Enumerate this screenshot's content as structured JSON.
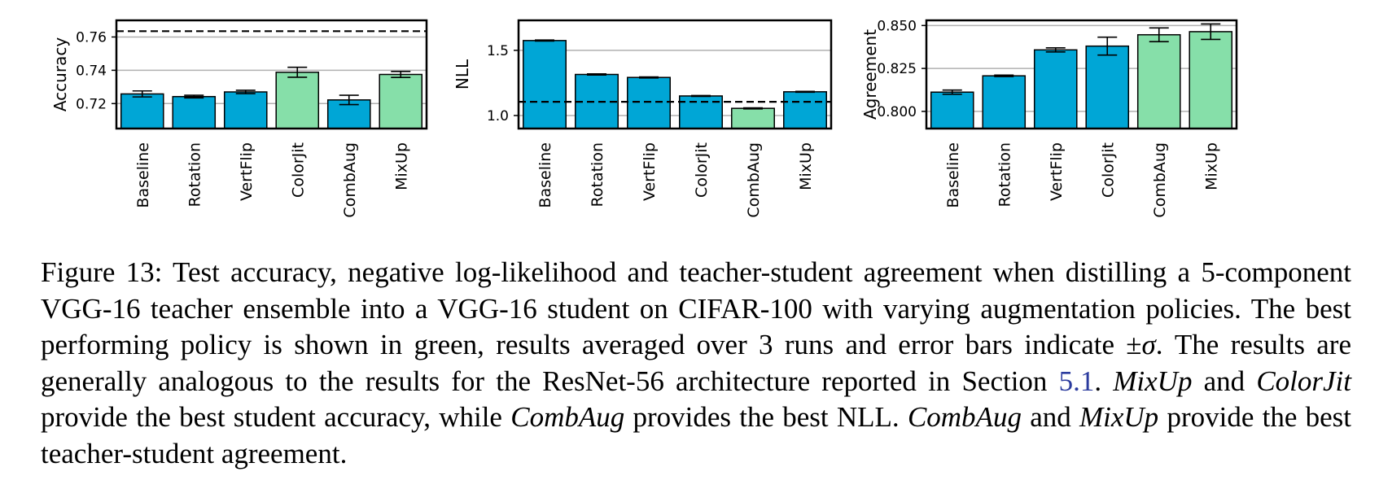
{
  "colors": {
    "bar": "#00a6d6",
    "best": "#86dfa9",
    "grid": "#b0b0b0",
    "axis": "#000000"
  },
  "chart_data": [
    {
      "type": "bar",
      "ylabel": "Accuracy",
      "categories": [
        "Baseline",
        "Rotation",
        "VertFlip",
        "ColorJit",
        "CombAug",
        "MixUp"
      ],
      "values": [
        0.7258,
        0.7242,
        0.727,
        0.7388,
        0.7222,
        0.7375
      ],
      "errors": [
        0.0018,
        0.0008,
        0.001,
        0.003,
        0.0028,
        0.0018
      ],
      "best": [
        false,
        false,
        false,
        true,
        false,
        true
      ],
      "reference_line": 0.7635,
      "ylim": [
        0.705,
        0.77
      ],
      "yticks": [
        0.72,
        0.74,
        0.76
      ],
      "ytick_labels": [
        "0.72",
        "0.74",
        "0.76"
      ]
    },
    {
      "type": "bar",
      "ylabel": "NLL",
      "categories": [
        "Baseline",
        "Rotation",
        "VertFlip",
        "ColorJit",
        "CombAug",
        "MixUp"
      ],
      "values": [
        1.575,
        1.315,
        1.292,
        1.15,
        1.055,
        1.182
      ],
      "errors": [
        0.004,
        0.004,
        0.004,
        0.003,
        0.004,
        0.003
      ],
      "best": [
        false,
        false,
        false,
        false,
        true,
        false
      ],
      "reference_line": 1.105,
      "ylim": [
        0.9,
        1.73
      ],
      "yticks": [
        1.0,
        1.5
      ],
      "ytick_labels": [
        "1.0",
        "1.5"
      ]
    },
    {
      "type": "bar",
      "ylabel": "Agreement",
      "categories": [
        "Baseline",
        "Rotation",
        "VertFlip",
        "ColorJit",
        "CombAug",
        "MixUp"
      ],
      "values": [
        0.8112,
        0.8207,
        0.8358,
        0.838,
        0.8446,
        0.8464
      ],
      "errors": [
        0.0012,
        0.0004,
        0.0012,
        0.0052,
        0.004,
        0.0045
      ],
      "best": [
        false,
        false,
        false,
        false,
        true,
        true
      ],
      "reference_line": null,
      "ylim": [
        0.79,
        0.853
      ],
      "yticks": [
        0.8,
        0.825,
        0.85
      ],
      "ytick_labels": [
        "0.800",
        "0.825",
        "0.850"
      ]
    }
  ],
  "caption": {
    "label": "Figure 13:",
    "text1": "Test accuracy, negative log-likelihood and teacher-student agreement when distilling a 5-component VGG-16 teacher ensemble into a VGG-16 student on CIFAR-100 with varying augmentation policies. The best performing policy is shown in green, results averaged over 3 runs and error bars indicate ±",
    "sigma": "σ",
    "text2": ". The results are generally analogous to the results for the ResNet-56 architecture reported in Section",
    "section_ref": "5.1",
    "text3": ".",
    "mixup": "MixUp",
    "and1": "and",
    "colorjit": "ColorJit",
    "text4": "provide the best student accuracy, while",
    "combaug1": "CombAug",
    "text5": "provides the best NLL.",
    "combaug2": "CombAug",
    "and2": "and",
    "mixup2": "MixUp",
    "text6": "provide the best teacher-student agreement."
  }
}
